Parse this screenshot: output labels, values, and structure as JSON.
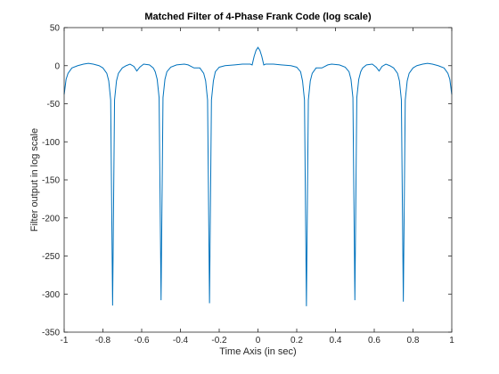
{
  "chart_data": {
    "type": "line",
    "title": "Matched Filter of 4-Phase Frank Code (log scale)",
    "xlabel": "Time Axis (in sec)",
    "ylabel": "Filter output in log scale",
    "color": "#0072bd",
    "x": [
      -1,
      -0.99,
      -0.98,
      -0.96,
      -0.93,
      -0.9,
      -0.875,
      -0.85,
      -0.82,
      -0.8,
      -0.78,
      -0.77,
      -0.76,
      -0.75,
      -0.74,
      -0.73,
      -0.72,
      -0.7,
      -0.68,
      -0.66,
      -0.64,
      -0.625,
      -0.61,
      -0.59,
      -0.56,
      -0.54,
      -0.53,
      -0.52,
      -0.51,
      -0.5,
      -0.49,
      -0.48,
      -0.47,
      -0.45,
      -0.42,
      -0.38,
      -0.36,
      -0.33,
      -0.3,
      -0.28,
      -0.27,
      -0.26,
      -0.25,
      -0.24,
      -0.23,
      -0.22,
      -0.2,
      -0.17,
      -0.12,
      -0.08,
      -0.04,
      -0.03,
      -0.02,
      -0.01,
      0,
      0.01,
      0.02,
      0.03,
      0.04,
      0.08,
      0.12,
      0.17,
      0.2,
      0.22,
      0.23,
      0.24,
      0.25,
      0.26,
      0.27,
      0.28,
      0.3,
      0.33,
      0.36,
      0.38,
      0.42,
      0.45,
      0.47,
      0.48,
      0.49,
      0.5,
      0.51,
      0.52,
      0.53,
      0.54,
      0.56,
      0.59,
      0.61,
      0.625,
      0.64,
      0.66,
      0.68,
      0.7,
      0.72,
      0.73,
      0.74,
      0.75,
      0.76,
      0.77,
      0.78,
      0.8,
      0.82,
      0.85,
      0.875,
      0.9,
      0.93,
      0.96,
      0.98,
      0.99,
      1
    ],
    "values": [
      -38,
      -18,
      -10,
      -3,
      0,
      2,
      3,
      2,
      0,
      -3,
      -10,
      -20,
      -45,
      -315,
      -45,
      -20,
      -10,
      -3,
      0,
      2,
      -1,
      -7,
      -2,
      2,
      1,
      -3,
      -8,
      -18,
      -42,
      -308,
      -42,
      -18,
      -8,
      -2,
      1,
      2,
      1,
      -3,
      -3,
      -10,
      -20,
      -45,
      -312,
      -45,
      -20,
      -8,
      -2,
      0,
      1,
      2,
      2,
      1,
      12,
      20,
      24,
      20,
      12,
      1,
      2,
      2,
      1,
      0,
      -2,
      -8,
      -20,
      -45,
      -316,
      -45,
      -20,
      -10,
      -3,
      -3,
      1,
      2,
      1,
      -2,
      -8,
      -18,
      -42,
      -308,
      -42,
      -18,
      -8,
      -3,
      1,
      2,
      -2,
      -7,
      -1,
      2,
      0,
      -3,
      -10,
      -20,
      -45,
      -310,
      -45,
      -20,
      -10,
      -3,
      0,
      2,
      3,
      2,
      0,
      -3,
      -10,
      -18,
      -38
    ],
    "xlim": [
      -1,
      1
    ],
    "ylim": [
      -350,
      50
    ],
    "xticks": [
      -1,
      -0.8,
      -0.6,
      -0.4,
      -0.2,
      0,
      0.2,
      0.4,
      0.6,
      0.8,
      1
    ],
    "yticks": [
      -350,
      -300,
      -250,
      -200,
      -150,
      -100,
      -50,
      0,
      50
    ]
  }
}
